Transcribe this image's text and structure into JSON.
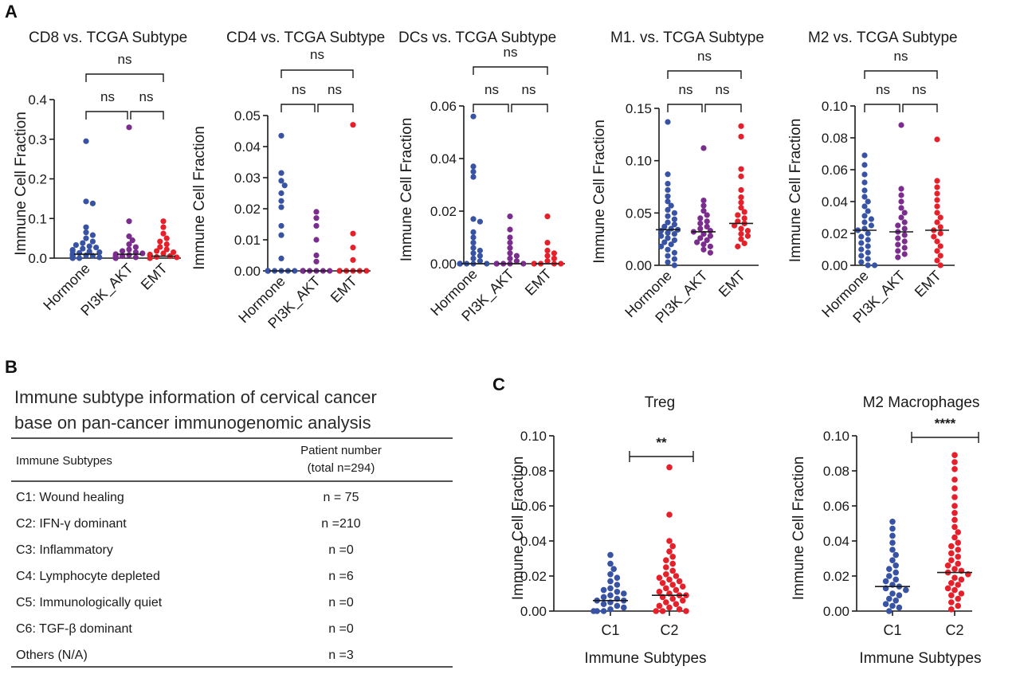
{
  "panels": {
    "a": "A",
    "b": "B",
    "c": "C"
  },
  "colors": {
    "Hormone": "#3953a4",
    "PI3K_AKT": "#7b2d8e",
    "EMT": "#e6202a",
    "C1": "#3953a4",
    "C2": "#e6202a"
  },
  "table": {
    "title_lines": [
      "Immune subtype information of cervical cancer",
      "base on pan-cancer immunogenomic analysis"
    ],
    "header": {
      "col1": "Immune Subtypes",
      "col2_line1": "Patient number",
      "col2_line2": "(total n=294)"
    },
    "rows": [
      {
        "subtype": "C1: Wound healing",
        "count": "n = 75"
      },
      {
        "subtype": "C2: IFN-γ dominant",
        "count": "n =210"
      },
      {
        "subtype": "C3: Inflammatory",
        "count": "n =0"
      },
      {
        "subtype": "C4: Lymphocyte depleted",
        "count": "n =6"
      },
      {
        "subtype": "C5: Immunologically quiet",
        "count": "n =0"
      },
      {
        "subtype": "C6: TGF-β dominant",
        "count": "n =0"
      },
      {
        "subtype": "Others (N/A)",
        "count": "n =3"
      }
    ]
  },
  "chart_data": [
    {
      "panel": "A",
      "type": "scatter",
      "title": "CD8 vs. TCGA Subtype",
      "ylabel": "Immune Cell Fraction",
      "categories": [
        "Hormone",
        "PI3K_AKT",
        "EMT"
      ],
      "ylim": [
        0,
        0.4
      ],
      "yticks": [
        "0.0",
        "0.1",
        "0.2",
        "0.3",
        "0.4"
      ],
      "significance": [
        {
          "pair": [
            "Hormone",
            "EMT"
          ],
          "label": "ns"
        },
        {
          "pair": [
            "Hormone",
            "PI3K_AKT"
          ],
          "label": "ns"
        },
        {
          "pair": [
            "PI3K_AKT",
            "EMT"
          ],
          "label": "ns"
        }
      ],
      "series": [
        {
          "name": "Hormone",
          "median": 0.01,
          "values": [
            0.295,
            0.143,
            0.138,
            0.078,
            0.065,
            0.058,
            0.05,
            0.042,
            0.038,
            0.033,
            0.03,
            0.027,
            0.024,
            0.021,
            0.019,
            0.017,
            0.015,
            0.013,
            0.011,
            0.01,
            0.009,
            0.008,
            0.007,
            0.006,
            0.005,
            0.004,
            0.003,
            0.002,
            0.001,
            0.0,
            0.0,
            0.0
          ]
        },
        {
          "name": "PI3K_AKT",
          "median": 0.01,
          "values": [
            0.33,
            0.093,
            0.055,
            0.045,
            0.035,
            0.028,
            0.022,
            0.018,
            0.015,
            0.012,
            0.01,
            0.008,
            0.006,
            0.005,
            0.004,
            0.003,
            0.002,
            0.001,
            0.0,
            0.0
          ]
        },
        {
          "name": "EMT",
          "median": 0.005,
          "values": [
            0.093,
            0.078,
            0.062,
            0.05,
            0.042,
            0.035,
            0.028,
            0.022,
            0.018,
            0.015,
            0.012,
            0.009,
            0.007,
            0.005,
            0.003,
            0.002,
            0.0,
            0.0
          ]
        }
      ]
    },
    {
      "panel": "A",
      "type": "scatter",
      "title": "CD4 vs. TCGA Subtype",
      "ylabel": "Immune Cell Fraction",
      "categories": [
        "Hormone",
        "PI3K_AKT",
        "EMT"
      ],
      "ylim": [
        0,
        0.05
      ],
      "yticks": [
        "0.00",
        "0.01",
        "0.02",
        "0.03",
        "0.04",
        "0.05"
      ],
      "significance": [
        {
          "pair": [
            "Hormone",
            "EMT"
          ],
          "label": "ns"
        },
        {
          "pair": [
            "Hormone",
            "PI3K_AKT"
          ],
          "label": "ns"
        },
        {
          "pair": [
            "PI3K_AKT",
            "EMT"
          ],
          "label": "ns"
        }
      ],
      "series": [
        {
          "name": "Hormone",
          "median": 0.0,
          "values": [
            0.0435,
            0.0315,
            0.029,
            0.0275,
            0.025,
            0.0225,
            0.0205,
            0.0145,
            0.0115,
            0.004,
            0.0,
            0.0,
            0.0,
            0.0,
            0.0,
            0.0,
            0.0,
            0.0,
            0.0,
            0.0,
            0.0,
            0.0
          ]
        },
        {
          "name": "PI3K_AKT",
          "median": 0.0,
          "values": [
            0.019,
            0.017,
            0.0145,
            0.01,
            0.005,
            0.003,
            0.0,
            0.0,
            0.0,
            0.0,
            0.0,
            0.0,
            0.0,
            0.0,
            0.0,
            0.0
          ]
        },
        {
          "name": "EMT",
          "median": 0.0,
          "values": [
            0.047,
            0.012,
            0.0075,
            0.0035,
            0.0,
            0.0,
            0.0,
            0.0,
            0.0,
            0.0,
            0.0,
            0.0
          ]
        }
      ]
    },
    {
      "panel": "A",
      "type": "scatter",
      "title": "DCs vs. TCGA Subtype",
      "ylabel": "Immune Cell Fraction",
      "categories": [
        "Hormone",
        "PI3K_AKT",
        "EMT"
      ],
      "ylim": [
        0,
        0.06
      ],
      "yticks": [
        "0.00",
        "0.02",
        "0.04",
        "0.06"
      ],
      "significance": [
        {
          "pair": [
            "Hormone",
            "EMT"
          ],
          "label": "ns"
        },
        {
          "pair": [
            "Hormone",
            "PI3K_AKT"
          ],
          "label": "ns"
        },
        {
          "pair": [
            "PI3K_AKT",
            "EMT"
          ],
          "label": "ns"
        }
      ],
      "series": [
        {
          "name": "Hormone",
          "median": 0.0,
          "values": [
            0.056,
            0.037,
            0.035,
            0.033,
            0.017,
            0.016,
            0.012,
            0.01,
            0.008,
            0.006,
            0.005,
            0.004,
            0.003,
            0.002,
            0.001,
            0.0,
            0.0,
            0.0,
            0.0,
            0.0,
            0.0,
            0.0,
            0.0,
            0.0
          ]
        },
        {
          "name": "PI3K_AKT",
          "median": 0.0,
          "values": [
            0.018,
            0.013,
            0.01,
            0.008,
            0.006,
            0.004,
            0.003,
            0.002,
            0.001,
            0.0,
            0.0,
            0.0,
            0.0,
            0.0,
            0.0
          ]
        },
        {
          "name": "EMT",
          "median": 0.0,
          "values": [
            0.018,
            0.008,
            0.005,
            0.004,
            0.003,
            0.002,
            0.001,
            0.0,
            0.0,
            0.0,
            0.0,
            0.0
          ]
        }
      ]
    },
    {
      "panel": "A",
      "type": "scatter",
      "title": "M1. vs. TCGA Subtype",
      "ylabel": "Immune Cell Fraction",
      "categories": [
        "Hormone",
        "PI3K_AKT",
        "EMT"
      ],
      "ylim": [
        0,
        0.15
      ],
      "yticks": [
        "0.00",
        "0.05",
        "0.10",
        "0.15"
      ],
      "significance": [
        {
          "pair": [
            "Hormone",
            "EMT"
          ],
          "label": "ns"
        },
        {
          "pair": [
            "Hormone",
            "PI3K_AKT"
          ],
          "label": "ns"
        },
        {
          "pair": [
            "PI3K_AKT",
            "EMT"
          ],
          "label": "ns"
        }
      ],
      "series": [
        {
          "name": "Hormone",
          "median": 0.034,
          "values": [
            0.137,
            0.087,
            0.078,
            0.072,
            0.066,
            0.061,
            0.057,
            0.053,
            0.05,
            0.047,
            0.044,
            0.041,
            0.039,
            0.037,
            0.035,
            0.034,
            0.033,
            0.031,
            0.03,
            0.028,
            0.026,
            0.024,
            0.022,
            0.02,
            0.018,
            0.015,
            0.012,
            0.009,
            0.006,
            0.003,
            0.0
          ]
        },
        {
          "name": "PI3K_AKT",
          "median": 0.032,
          "values": [
            0.112,
            0.062,
            0.057,
            0.052,
            0.048,
            0.045,
            0.042,
            0.04,
            0.037,
            0.035,
            0.033,
            0.032,
            0.03,
            0.028,
            0.026,
            0.024,
            0.022,
            0.02,
            0.018,
            0.015,
            0.012
          ]
        },
        {
          "name": "EMT",
          "median": 0.04,
          "values": [
            0.133,
            0.123,
            0.092,
            0.085,
            0.072,
            0.065,
            0.06,
            0.055,
            0.051,
            0.048,
            0.045,
            0.042,
            0.04,
            0.038,
            0.035,
            0.033,
            0.03,
            0.028,
            0.025,
            0.021,
            0.018
          ]
        }
      ]
    },
    {
      "panel": "A",
      "type": "scatter",
      "title": "M2 vs. TCGA Subtype",
      "ylabel": "Immune Cell Fraction",
      "categories": [
        "Hormone",
        "PI3K_AKT",
        "EMT"
      ],
      "ylim": [
        0,
        0.1
      ],
      "yticks": [
        "0.00",
        "0.02",
        "0.04",
        "0.06",
        "0.08",
        "0.10"
      ],
      "significance": [
        {
          "pair": [
            "Hormone",
            "EMT"
          ],
          "label": "ns"
        },
        {
          "pair": [
            "Hormone",
            "PI3K_AKT"
          ],
          "label": "ns"
        },
        {
          "pair": [
            "PI3K_AKT",
            "EMT"
          ],
          "label": "ns"
        }
      ],
      "series": [
        {
          "name": "Hormone",
          "median": 0.022,
          "values": [
            0.069,
            0.063,
            0.057,
            0.052,
            0.047,
            0.043,
            0.04,
            0.037,
            0.034,
            0.031,
            0.029,
            0.027,
            0.025,
            0.023,
            0.022,
            0.02,
            0.018,
            0.016,
            0.014,
            0.012,
            0.01,
            0.008,
            0.006,
            0.004,
            0.002,
            0.0,
            0.0
          ]
        },
        {
          "name": "PI3K_AKT",
          "median": 0.021,
          "values": [
            0.088,
            0.048,
            0.044,
            0.04,
            0.036,
            0.033,
            0.03,
            0.027,
            0.025,
            0.023,
            0.021,
            0.019,
            0.017,
            0.015,
            0.013,
            0.011,
            0.009,
            0.007,
            0.005
          ]
        },
        {
          "name": "EMT",
          "median": 0.022,
          "values": [
            0.079,
            0.053,
            0.049,
            0.045,
            0.041,
            0.037,
            0.033,
            0.03,
            0.027,
            0.024,
            0.022,
            0.02,
            0.018,
            0.015,
            0.012,
            0.009,
            0.006,
            0.003,
            0.0
          ]
        }
      ]
    },
    {
      "panel": "C",
      "type": "scatter",
      "title": "Treg",
      "ylabel": "Immune Cell Fraction",
      "xlabel": "Immune Subtypes",
      "categories": [
        "C1",
        "C2"
      ],
      "ylim": [
        0,
        0.1
      ],
      "yticks": [
        "0.00",
        "0.02",
        "0.04",
        "0.06",
        "0.08",
        "0.10"
      ],
      "significance": [
        {
          "pair": [
            "C1",
            "C2"
          ],
          "label": "**"
        }
      ],
      "series": [
        {
          "name": "C1",
          "median": 0.006,
          "values": [
            0.032,
            0.027,
            0.024,
            0.021,
            0.019,
            0.017,
            0.015,
            0.013,
            0.012,
            0.011,
            0.01,
            0.009,
            0.008,
            0.007,
            0.006,
            0.006,
            0.005,
            0.004,
            0.003,
            0.002,
            0.001,
            0.0,
            0.0,
            0.0
          ]
        },
        {
          "name": "C2",
          "median": 0.009,
          "values": [
            0.082,
            0.055,
            0.04,
            0.037,
            0.034,
            0.031,
            0.029,
            0.027,
            0.025,
            0.023,
            0.021,
            0.02,
            0.019,
            0.018,
            0.017,
            0.016,
            0.015,
            0.014,
            0.013,
            0.012,
            0.011,
            0.01,
            0.009,
            0.009,
            0.008,
            0.007,
            0.006,
            0.005,
            0.004,
            0.003,
            0.002,
            0.001,
            0.0,
            0.0,
            0.0
          ]
        }
      ]
    },
    {
      "panel": "C",
      "type": "scatter",
      "title": "M2 Macrophages",
      "ylabel": "Immune Cell Fraction",
      "xlabel": "Immune Subtypes",
      "categories": [
        "C1",
        "C2"
      ],
      "ylim": [
        0,
        0.1
      ],
      "yticks": [
        "0.00",
        "0.02",
        "0.04",
        "0.06",
        "0.08",
        "0.10"
      ],
      "significance": [
        {
          "pair": [
            "C1",
            "C2"
          ],
          "label": "****"
        }
      ],
      "series": [
        {
          "name": "C1",
          "median": 0.014,
          "values": [
            0.051,
            0.047,
            0.043,
            0.039,
            0.035,
            0.032,
            0.029,
            0.026,
            0.024,
            0.022,
            0.02,
            0.018,
            0.017,
            0.015,
            0.014,
            0.013,
            0.012,
            0.01,
            0.009,
            0.007,
            0.006,
            0.004,
            0.003,
            0.002,
            0.0
          ]
        },
        {
          "name": "C2",
          "median": 0.022,
          "values": [
            0.089,
            0.085,
            0.081,
            0.075,
            0.07,
            0.065,
            0.06,
            0.056,
            0.052,
            0.048,
            0.045,
            0.042,
            0.039,
            0.037,
            0.035,
            0.033,
            0.031,
            0.029,
            0.027,
            0.026,
            0.024,
            0.023,
            0.022,
            0.021,
            0.019,
            0.018,
            0.016,
            0.015,
            0.013,
            0.012,
            0.01,
            0.009,
            0.007,
            0.005,
            0.003,
            0.001
          ]
        }
      ]
    }
  ]
}
